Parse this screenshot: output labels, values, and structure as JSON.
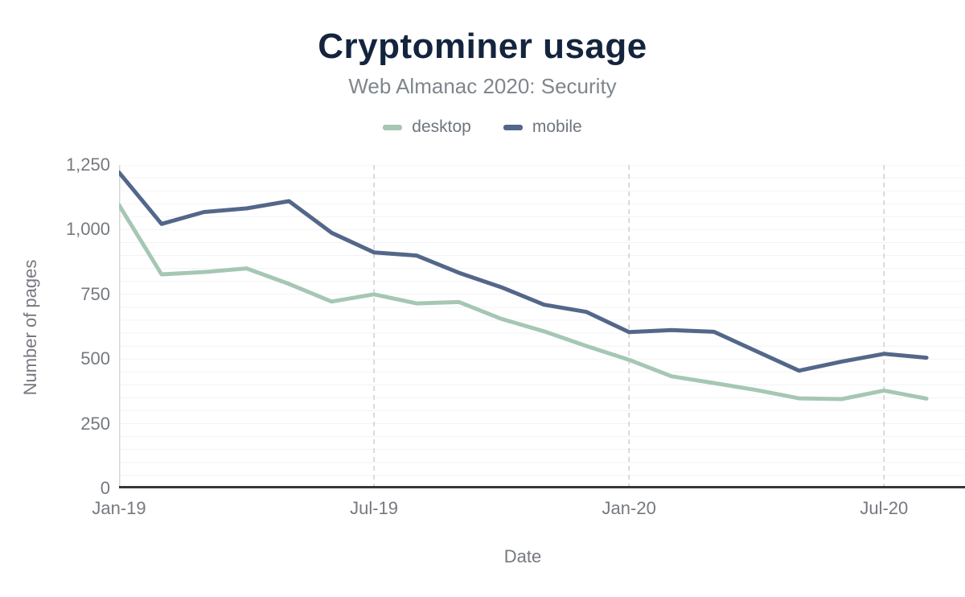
{
  "header": {
    "title": "Cryptominer usage",
    "subtitle": "Web Almanac 2020: Security"
  },
  "chart_data": {
    "type": "line",
    "title": "Cryptominer usage",
    "subtitle": "Web Almanac 2020: Security",
    "xlabel": "Date",
    "ylabel": "Number of pages",
    "ylim": [
      0,
      1250
    ],
    "y_tick_values": [
      0,
      250,
      500,
      750,
      1000,
      1250
    ],
    "y_tick_labels": [
      "0",
      "250",
      "500",
      "750",
      "1,000",
      "1,250"
    ],
    "x": [
      "Jan-19",
      "Feb-19",
      "Mar-19",
      "Apr-19",
      "May-19",
      "Jun-19",
      "Jul-19",
      "Aug-19",
      "Sep-19",
      "Oct-19",
      "Nov-19",
      "Dec-19",
      "Jan-20",
      "Feb-20",
      "Mar-20",
      "Apr-20",
      "May-20",
      "Jun-20",
      "Jul-20",
      "Aug-20"
    ],
    "x_tick_labels": [
      "Jan-19",
      "Jul-19",
      "Jan-20",
      "Jul-20"
    ],
    "x_tick_month_indexes": [
      0,
      6,
      12,
      18
    ],
    "grid": {
      "horizontal_minor_step": 50,
      "vertical_dashed_at_month_indexes": [
        6,
        12,
        18
      ]
    },
    "legend_position": "top",
    "series": [
      {
        "name": "desktop",
        "color": "#a5c7b4",
        "values": [
          1095,
          827,
          836,
          850,
          790,
          722,
          750,
          715,
          720,
          655,
          607,
          550,
          497,
          433,
          407,
          380,
          348,
          345,
          378,
          347
        ]
      },
      {
        "name": "mobile",
        "color": "#53678a",
        "values": [
          1221,
          1022,
          1068,
          1082,
          1110,
          988,
          912,
          900,
          833,
          777,
          710,
          682,
          604,
          612,
          605,
          530,
          455,
          490,
          520,
          505
        ]
      }
    ]
  },
  "colors": {
    "title": "#14243e",
    "subtitle": "#7e868d",
    "axis_text": "#75797f",
    "legend_text": "#6e757c",
    "x_axis_line": "#35383b",
    "y_axis_line": "#d7d7d7",
    "gridline_minor": "#f3f3f3",
    "gridline_dashed": "#cfcfcf",
    "background": "#ffffff",
    "desktop_series": "#a5c7b4",
    "mobile_series": "#53678a"
  }
}
